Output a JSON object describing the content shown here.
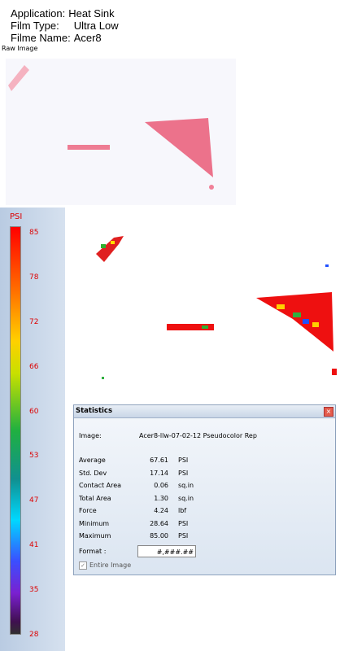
{
  "header": {
    "lines": [
      {
        "label": "Application:",
        "value": "Heat Sink"
      },
      {
        "label": "Film Type:",
        "value": "Ultra Low"
      },
      {
        "label": "Filme Name:",
        "value": "Acer8"
      }
    ]
  },
  "raw_image": {
    "label": "Raw Image"
  },
  "legend": {
    "unit": "PSI",
    "ticks": [
      "85",
      "78",
      "72",
      "66",
      "60",
      "53",
      "47",
      "41",
      "35",
      "28"
    ]
  },
  "statistics": {
    "title": "Statistics",
    "image": {
      "label": "Image:",
      "value": "Acer8-llw-07-02-12 Pseudocolor Rep"
    },
    "rows": [
      {
        "label": "Average",
        "value": "67.61",
        "unit": "PSI"
      },
      {
        "label": "Std. Dev",
        "value": "17.14",
        "unit": "PSI"
      },
      {
        "label": "Contact Area",
        "value": "0.06",
        "unit": "sq.in"
      },
      {
        "label": "Total Area",
        "value": "1.30",
        "unit": "sq.in"
      },
      {
        "label": "Force",
        "value": "4.24",
        "unit": "lbf"
      },
      {
        "label": "Minimum",
        "value": "28.64",
        "unit": "PSI"
      },
      {
        "label": "Maximum",
        "value": "85.00",
        "unit": "PSI"
      }
    ],
    "format": {
      "label": "Format :",
      "value": "#,###.##"
    },
    "checkbox": {
      "label": "Entire Image"
    }
  }
}
